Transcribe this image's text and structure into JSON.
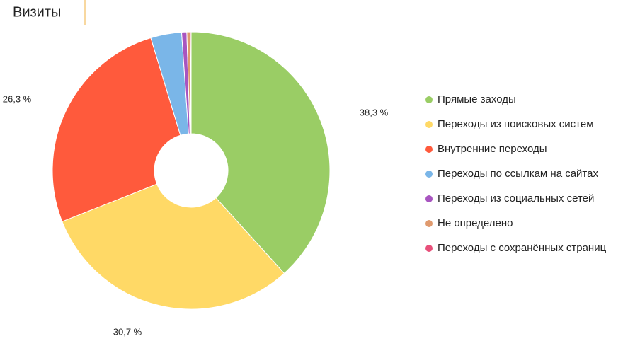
{
  "chart_data": {
    "type": "pie",
    "title": "Визиты",
    "categories": [
      "Прямые заходы",
      "Переходы из поисковых систем",
      "Внутренние переходы",
      "Переходы по ссылкам на сайтах",
      "Переходы из социальных сетей",
      "Не определено",
      "Переходы с сохранённых страниц"
    ],
    "values": [
      38.3,
      30.7,
      26.3,
      3.6,
      0.6,
      0.4,
      0.1
    ],
    "value_labels": [
      "38,3 %",
      "30,7 %",
      "26,3 %",
      null,
      null,
      null,
      null
    ],
    "colors": [
      "#9acd65",
      "#ffd966",
      "#ff5a3c",
      "#7ab6e8",
      "#a855c0",
      "#e09a6e",
      "#e8507a"
    ],
    "legend": "right"
  }
}
